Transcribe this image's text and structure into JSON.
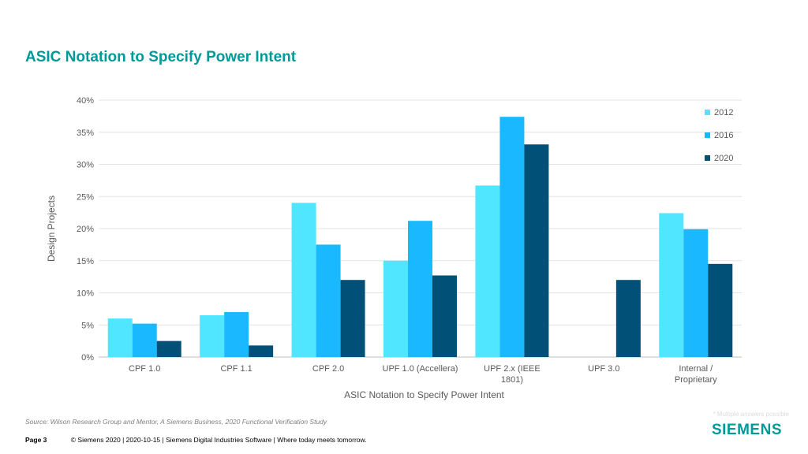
{
  "slide": {
    "title": "ASIC Notation to Specify Power Intent",
    "source": "Source:  Wilson Research Group and Mentor,  A Siemens Business, 2020 Functional Verification Study",
    "footnote": "* Multiple answers possible",
    "page_label": "Page 3",
    "footer_text": "© Siemens 2020 | 2020-10-15 | Siemens Digital Industries Software | Where today meets tomorrow.",
    "logo_text": "SIEMENS"
  },
  "chart_data": {
    "type": "bar",
    "title": "",
    "xlabel": "ASIC Notation to Specify Power Intent",
    "ylabel": "Design Projects",
    "ylim": [
      0,
      40
    ],
    "yticks": [
      "0%",
      "5%",
      "10%",
      "15%",
      "20%",
      "25%",
      "30%",
      "35%",
      "40%"
    ],
    "grid": true,
    "legend_position": "top-right",
    "categories": [
      [
        "CPF 1.0"
      ],
      [
        "CPF 1.1"
      ],
      [
        "CPF 2.0"
      ],
      [
        "UPF 1.0 (Accellera)"
      ],
      [
        "UPF 2.x (IEEE",
        "1801)"
      ],
      [
        "UPF 3.0"
      ],
      [
        "Internal /",
        "Proprietary"
      ]
    ],
    "series": [
      {
        "name": "2012",
        "color": "#50E6FF",
        "values": [
          6.0,
          6.5,
          24.0,
          15.0,
          26.7,
          0,
          22.4
        ]
      },
      {
        "name": "2016",
        "color": "#1AB8FF",
        "values": [
          5.2,
          7.0,
          17.5,
          21.2,
          37.4,
          0,
          19.9
        ]
      },
      {
        "name": "2020",
        "color": "#005078",
        "values": [
          2.5,
          1.8,
          12.0,
          12.7,
          33.1,
          12.0,
          14.5
        ]
      }
    ]
  }
}
